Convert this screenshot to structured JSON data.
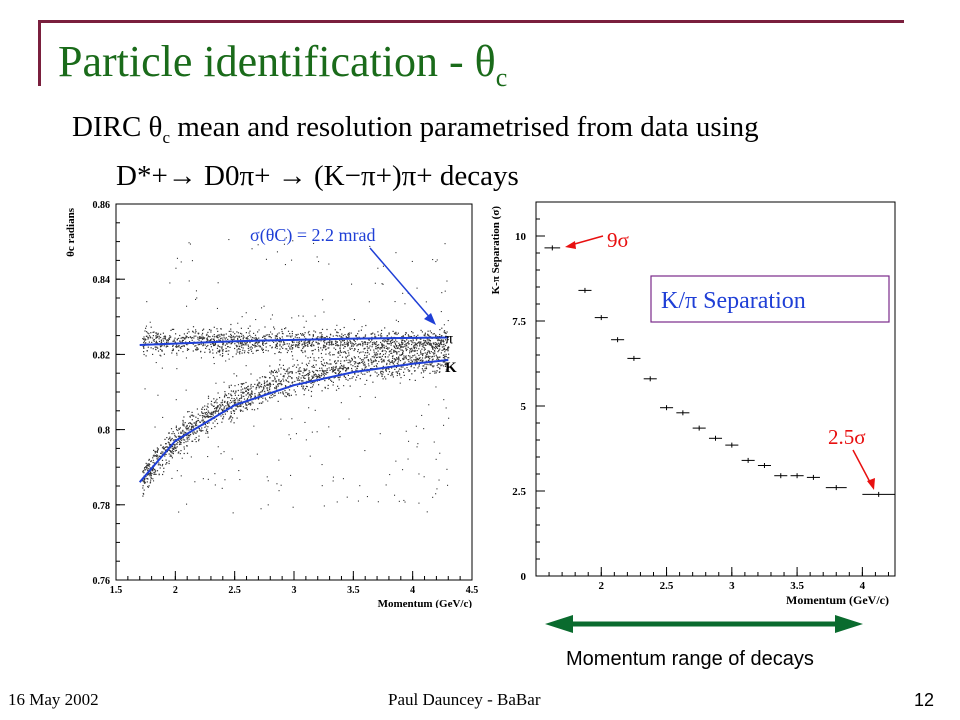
{
  "slide": {
    "title": "Particle identification - θ",
    "title_sub": "c",
    "subtitle_line1_a": "DIRC θ",
    "subtitle_line1_sub": "c",
    "subtitle_line1_b": " mean and resolution parametrised from data using",
    "subtitle_line2": "D*+→ D0π+ → (K−π+)π+ decays",
    "footer_date": "16 May 2002",
    "footer_author": "Paul Dauncey - BaBar",
    "footer_page": "12",
    "range_label": "Momentum range of decays"
  },
  "colors": {
    "title": "#1a6b1a",
    "frame": "#7a1f3d",
    "fit_line": "#1f3fd6",
    "annotation_red": "#e81010",
    "arrow_green": "#0a6b2e",
    "box_border": "#7a2a8a"
  },
  "chart_data": [
    {
      "type": "scatter",
      "ylabel": "θc radians",
      "xlabel": "Momentum (GeV/c)",
      "xlim": [
        1.5,
        4.5
      ],
      "ylim": [
        0.76,
        0.86
      ],
      "xticks": [
        "1.5",
        "2",
        "2.5",
        "3",
        "3.5",
        "4",
        "4.5"
      ],
      "yticks": [
        "0.76",
        "0.78",
        "0.8",
        "0.82",
        "0.84",
        "0.86"
      ],
      "annotation": "σ(θC) = 2.2 mrad",
      "series": [
        {
          "name": "π",
          "x_range": [
            1.7,
            4.3
          ],
          "fit": {
            "x": [
              1.7,
              2.5,
              3.5,
              4.3
            ],
            "y": [
              0.8225,
              0.8235,
              0.8242,
              0.8245
            ]
          }
        },
        {
          "name": "K",
          "x_range": [
            1.7,
            4.3
          ],
          "fit": {
            "x": [
              1.7,
              2.0,
              2.5,
              3.0,
              3.5,
              4.0,
              4.3
            ],
            "y": [
              0.786,
              0.797,
              0.8065,
              0.8118,
              0.8153,
              0.8175,
              0.8185
            ]
          }
        }
      ]
    },
    {
      "type": "line",
      "ylabel": "K-π Separation (σ)",
      "xlabel": "Momentum (GeV/c)",
      "xlim": [
        1.5,
        4.25
      ],
      "ylim": [
        0,
        11
      ],
      "xticks": [
        "2",
        "2.5",
        "3",
        "3.5",
        "4"
      ],
      "yticks": [
        "0",
        "2.5",
        "5",
        "7.5",
        "10"
      ],
      "box_label": "K/π Separation",
      "annotations": [
        "9σ",
        "2.5σ"
      ],
      "x": [
        1.625,
        1.875,
        2.0,
        2.125,
        2.25,
        2.375,
        2.5,
        2.625,
        2.75,
        2.875,
        3.0,
        3.125,
        3.25,
        3.375,
        3.5,
        3.625,
        3.8,
        4.125
      ],
      "values": [
        9.65,
        8.4,
        7.6,
        6.95,
        6.4,
        5.8,
        4.95,
        4.8,
        4.35,
        4.05,
        3.85,
        3.4,
        3.25,
        2.95,
        2.95,
        2.9,
        2.6,
        2.4
      ]
    }
  ]
}
